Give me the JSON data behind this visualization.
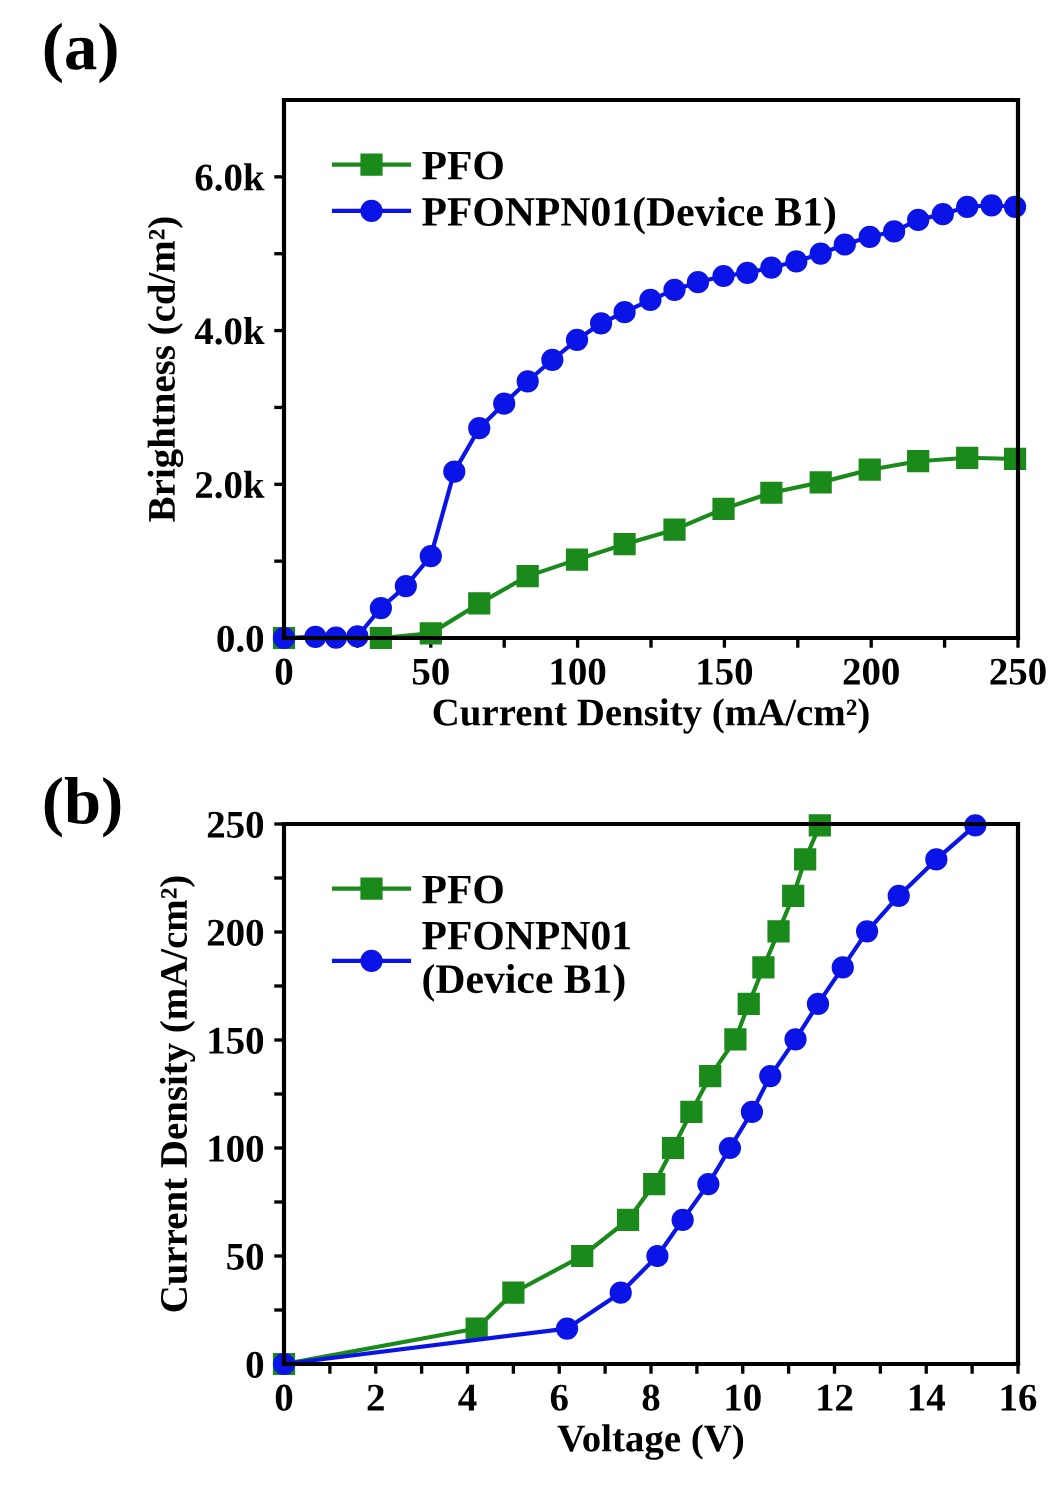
{
  "chart_data": [
    {
      "type": "line",
      "title": "(a)",
      "xlabel": "Current Density (mA/cm²)",
      "ylabel": "Brightness (cd/m²)",
      "xlim": [
        0,
        250
      ],
      "ylim": [
        0,
        7000
      ],
      "xticks": [
        0,
        {
          "value": 25,
          "label": null
        },
        50,
        {
          "value": 75,
          "label": null
        },
        100,
        {
          "value": 125,
          "label": null
        },
        150,
        {
          "value": 175,
          "label": null
        },
        200,
        {
          "value": 225,
          "label": null
        },
        250
      ],
      "yticks": [
        {
          "value": 0,
          "label": "0.0"
        },
        {
          "value": 1000,
          "label": null
        },
        {
          "value": 2000,
          "label": "2.0k"
        },
        {
          "value": 3000,
          "label": null
        },
        {
          "value": 4000,
          "label": "4.0k"
        },
        {
          "value": 5000,
          "label": null
        },
        {
          "value": 6000,
          "label": "6.0k"
        }
      ],
      "grid": false,
      "legend": "top left",
      "line_style": "solid",
      "series": [
        {
          "name": "PFO",
          "color": "#1a8a1a",
          "marker": "square",
          "x": [
            0,
            33,
            50,
            66.5,
            83,
            99.8,
            116,
            133,
            149.7,
            166,
            182.8,
            199.5,
            216,
            232.7,
            249
          ],
          "values": [
            0,
            0,
            60,
            450,
            805,
            1020,
            1220,
            1410,
            1680,
            1890,
            2025,
            2190,
            2300,
            2345,
            2330
          ]
        },
        {
          "name": "PFONPN01(Device B1)",
          "color": "#0a14e6",
          "marker": "circle",
          "x": [
            0,
            10.7,
            17.7,
            25,
            33,
            41.5,
            50,
            58,
            66.5,
            75,
            83,
            91.4,
            99.8,
            108,
            116,
            124.8,
            133,
            141,
            149.7,
            157.8,
            166,
            174.5,
            182.8,
            191,
            199.5,
            207.8,
            216,
            224.4,
            232.7,
            241,
            249
          ],
          "values": [
            0,
            15,
            5,
            20,
            390,
            675,
            1065,
            2165,
            2730,
            3050,
            3340,
            3620,
            3880,
            4095,
            4240,
            4400,
            4530,
            4630,
            4710,
            4750,
            4820,
            4900,
            5000,
            5120,
            5220,
            5290,
            5440,
            5515,
            5610,
            5630,
            5610
          ]
        }
      ]
    },
    {
      "type": "line",
      "title": "(b)",
      "xlabel": "Voltage (V)",
      "ylabel": "Current Density (mA/cm²)",
      "xlim": [
        0,
        16
      ],
      "ylim": [
        0,
        250
      ],
      "xticks": [
        0,
        {
          "value": 1,
          "label": null
        },
        2,
        {
          "value": 3,
          "label": null
        },
        4,
        {
          "value": 5,
          "label": null
        },
        6,
        {
          "value": 7,
          "label": null
        },
        8,
        {
          "value": 9,
          "label": null
        },
        10,
        {
          "value": 11,
          "label": null
        },
        12,
        {
          "value": 13,
          "label": null
        },
        14,
        {
          "value": 15,
          "label": null
        },
        16
      ],
      "yticks": [
        0,
        {
          "value": 25,
          "label": null
        },
        50,
        {
          "value": 75,
          "label": null
        },
        100,
        {
          "value": 125,
          "label": null
        },
        150,
        {
          "value": 175,
          "label": null
        },
        200,
        {
          "value": 225,
          "label": null
        },
        250
      ],
      "grid": false,
      "legend": "top left",
      "line_style": "solid",
      "series": [
        {
          "name": "PFO",
          "color": "#1a8a1a",
          "marker": "square",
          "x": [
            0,
            4.2,
            5.0,
            6.5,
            7.5,
            8.07,
            8.48,
            8.88,
            9.29,
            9.84,
            10.13,
            10.45,
            10.78,
            11.1,
            11.36,
            11.68
          ],
          "values": [
            0,
            16.4,
            33,
            50,
            66.7,
            83.3,
            100,
            116.7,
            133.3,
            150.3,
            166.7,
            183.6,
            200.3,
            216.7,
            233.6,
            249.4
          ]
        },
        {
          "name": "PFONPN01\n(Device B1)",
          "color": "#0a14e6",
          "marker": "circle",
          "x": [
            0,
            6.17,
            7.34,
            8.14,
            8.69,
            9.25,
            9.72,
            10.2,
            10.6,
            11.15,
            11.64,
            12.18,
            12.71,
            13.4,
            14.22,
            15.07
          ],
          "values": [
            0,
            16.4,
            33,
            50,
            66.7,
            83.3,
            100,
            116.7,
            133.3,
            150.3,
            166.7,
            183.6,
            200.3,
            216.7,
            233.6,
            249.4
          ]
        }
      ]
    }
  ]
}
